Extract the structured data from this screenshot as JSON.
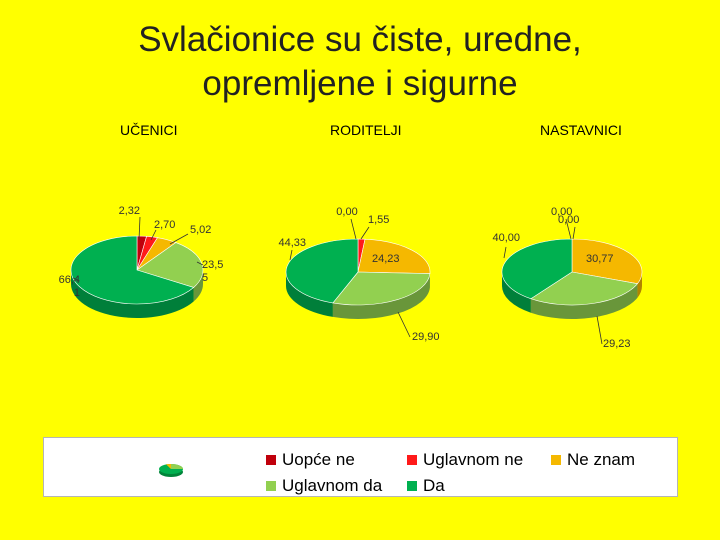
{
  "title_line1": "Svlačionice su čiste, uredne,",
  "title_line2": "opremljene i sigurne",
  "chart_data": [
    {
      "type": "pie",
      "title": "UČENICI",
      "categories": [
        "Uopće ne",
        "Uglavnom ne",
        "Ne znam",
        "Uglavnom da",
        "Da"
      ],
      "values": [
        2.32,
        2.7,
        5.02,
        23.55,
        66.41
      ],
      "labels": [
        "2,32",
        "2,70",
        "5,02",
        "23,5\n5",
        "66,4\n1"
      ]
    },
    {
      "type": "pie",
      "title": "RODITELJI",
      "categories": [
        "Uopće ne",
        "Uglavnom ne",
        "Ne znam",
        "Uglavnom da",
        "Da"
      ],
      "values": [
        0.0,
        1.55,
        24.23,
        29.9,
        44.33
      ],
      "labels": [
        "0,00",
        "1,55",
        "24,23",
        "29,90",
        "44,33"
      ]
    },
    {
      "type": "pie",
      "title": "NASTAVNICI",
      "categories": [
        "Uopće ne",
        "Uglavnom ne",
        "Ne znam",
        "Uglavnom da",
        "Da"
      ],
      "values": [
        0.0,
        0.0,
        30.77,
        29.23,
        40.0
      ],
      "labels": [
        "0,00",
        "0,00",
        "30,77",
        "29,23",
        "40,00"
      ]
    }
  ],
  "legend": [
    {
      "label": "Uopće ne",
      "color": "#c0000c"
    },
    {
      "label": "Uglavnom ne",
      "color": "#ff1a1a"
    },
    {
      "label": "Ne znam",
      "color": "#f5b800"
    },
    {
      "label": "Uglavnom da",
      "color": "#92d050"
    },
    {
      "label": "Da",
      "color": "#00b050"
    }
  ]
}
